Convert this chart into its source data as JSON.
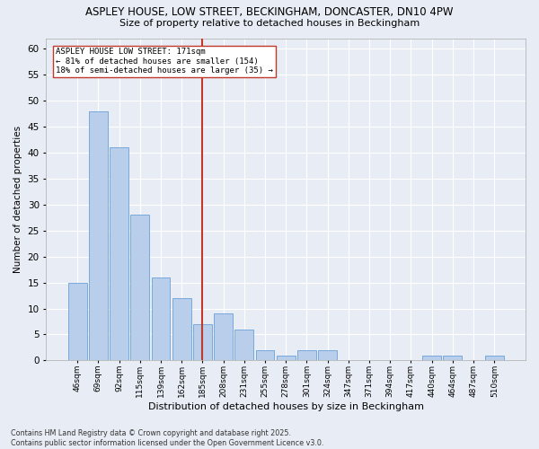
{
  "title1": "ASPLEY HOUSE, LOW STREET, BECKINGHAM, DONCASTER, DN10 4PW",
  "title2": "Size of property relative to detached houses in Beckingham",
  "xlabel": "Distribution of detached houses by size in Beckingham",
  "ylabel": "Number of detached properties",
  "categories": [
    "46sqm",
    "69sqm",
    "92sqm",
    "115sqm",
    "139sqm",
    "162sqm",
    "185sqm",
    "208sqm",
    "231sqm",
    "255sqm",
    "278sqm",
    "301sqm",
    "324sqm",
    "347sqm",
    "371sqm",
    "394sqm",
    "417sqm",
    "440sqm",
    "464sqm",
    "487sqm",
    "510sqm"
  ],
  "values": [
    15,
    48,
    41,
    28,
    16,
    12,
    7,
    9,
    6,
    2,
    1,
    2,
    2,
    0,
    0,
    0,
    0,
    1,
    1,
    0,
    1
  ],
  "bar_color": "#b8ceea",
  "bar_edge_color": "#6a9fd8",
  "background_color": "#e8edf5",
  "grid_color": "#ffffff",
  "ref_line_x": 6.0,
  "ref_line_label": "ASPLEY HOUSE LOW STREET: 171sqm",
  "ref_line_sublabel1": "← 81% of detached houses are smaller (154)",
  "ref_line_sublabel2": "18% of semi-detached houses are larger (35) →",
  "ref_line_color": "#c0392b",
  "ylim": [
    0,
    62
  ],
  "yticks": [
    0,
    5,
    10,
    15,
    20,
    25,
    30,
    35,
    40,
    45,
    50,
    55,
    60
  ],
  "title1_fontsize": 8.5,
  "title2_fontsize": 8.5,
  "footer1": "Contains HM Land Registry data © Crown copyright and database right 2025.",
  "footer2": "Contains public sector information licensed under the Open Government Licence v3.0."
}
